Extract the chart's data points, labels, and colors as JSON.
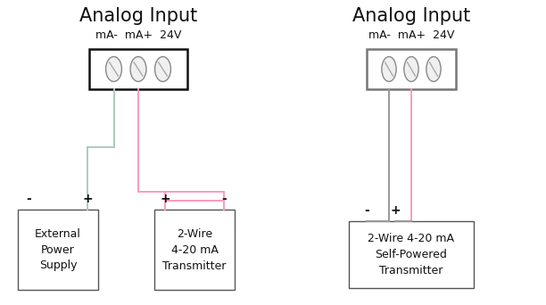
{
  "bg_color": "#ffffff",
  "wire_green": "#aaccbb",
  "wire_pink": "#ff99bb",
  "wire_gray": "#999999",
  "box_color_left": "#111111",
  "box_color_right": "#777777",
  "text_color": "#111111",
  "title1": "Analog Input",
  "subtitle1": "mA-  mA+  24V",
  "title2": "Analog Input",
  "subtitle2": "mA-  mA+  24V",
  "label_ext": "External\nPower\nSupply",
  "label_2wire": "2-Wire\n4-20 mA\nTransmitter",
  "label_self": "2-Wire 4-20 mA\nSelf-Powered\nTransmitter",
  "lw": 1.4,
  "fontsize_title": 15,
  "fontsize_sub": 9,
  "fontsize_label": 9,
  "fontsize_pm": 10
}
